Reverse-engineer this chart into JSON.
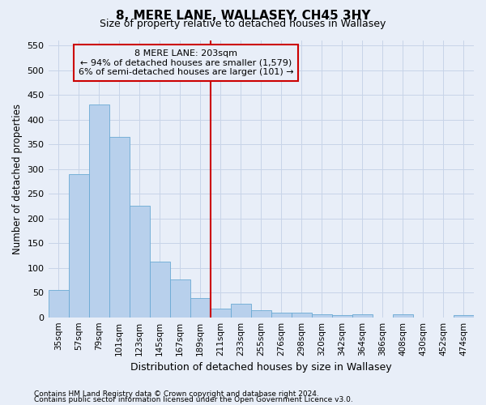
{
  "title": "8, MERE LANE, WALLASEY, CH45 3HY",
  "subtitle": "Size of property relative to detached houses in Wallasey",
  "xlabel": "Distribution of detached houses by size in Wallasey",
  "ylabel": "Number of detached properties",
  "categories": [
    "35sqm",
    "57sqm",
    "79sqm",
    "101sqm",
    "123sqm",
    "145sqm",
    "167sqm",
    "189sqm",
    "211sqm",
    "233sqm",
    "255sqm",
    "276sqm",
    "298sqm",
    "320sqm",
    "342sqm",
    "364sqm",
    "386sqm",
    "408sqm",
    "430sqm",
    "452sqm",
    "474sqm"
  ],
  "values": [
    55,
    290,
    430,
    365,
    225,
    113,
    77,
    38,
    17,
    27,
    15,
    10,
    10,
    6,
    4,
    6,
    0,
    6,
    0,
    0,
    4
  ],
  "bar_color": "#b8d0ec",
  "bar_edge_color": "#6aaad4",
  "grid_color": "#c8d4e8",
  "background_color": "#e8eef8",
  "vline_index": 8,
  "vline_color": "#cc0000",
  "annotation_line1": "8 MERE LANE: 203sqm",
  "annotation_line2": "← 94% of detached houses are smaller (1,579)",
  "annotation_line3": "6% of semi-detached houses are larger (101) →",
  "annotation_box_color": "#cc0000",
  "footer1": "Contains HM Land Registry data © Crown copyright and database right 2024.",
  "footer2": "Contains public sector information licensed under the Open Government Licence v3.0.",
  "ylim": [
    0,
    560
  ],
  "yticks": [
    0,
    50,
    100,
    150,
    200,
    250,
    300,
    350,
    400,
    450,
    500,
    550
  ]
}
